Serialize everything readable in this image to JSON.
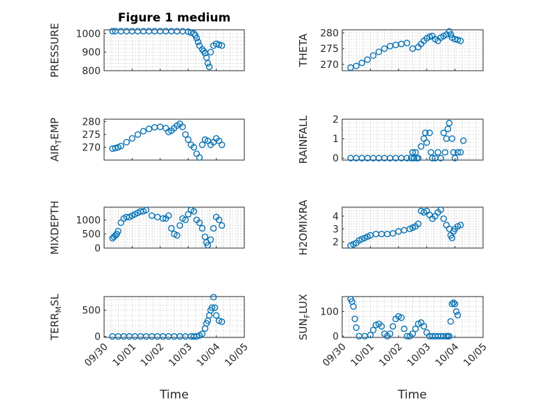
{
  "figure": {
    "title": "Figure 1 medium",
    "xlabel": "Time",
    "xticks": [
      "09/30",
      "10/01",
      "10/02",
      "10/03",
      "10/04",
      "10/05"
    ],
    "marker_color": "#0072BD"
  },
  "chart_data": [
    {
      "type": "scatter",
      "title": "Figure 1 medium",
      "ylabel": "PRESSURE",
      "ylim": [
        800,
        1020
      ],
      "yticks": [
        800,
        900,
        1000
      ],
      "grid": true,
      "x": [
        0.3,
        0.4,
        0.6,
        0.8,
        1.0,
        1.2,
        1.4,
        1.6,
        1.8,
        2.0,
        2.2,
        2.4,
        2.6,
        2.8,
        3.0,
        3.1,
        3.2,
        3.25,
        3.3,
        3.35,
        3.4,
        3.5,
        3.55,
        3.6,
        3.65,
        3.7,
        3.75,
        3.8,
        3.9,
        4.0,
        4.1,
        4.2
      ],
      "y": [
        1013,
        1013,
        1013,
        1013,
        1013,
        1013,
        1013,
        1013,
        1013,
        1013,
        1013,
        1013,
        1013,
        1012,
        1010,
        1005,
        1000,
        990,
        975,
        955,
        935,
        915,
        905,
        895,
        870,
        840,
        820,
        900,
        935,
        945,
        940,
        935
      ]
    },
    {
      "type": "scatter",
      "ylabel": "THETA",
      "ylim": [
        268,
        281
      ],
      "yticks": [
        270,
        275,
        280
      ],
      "grid": true,
      "x": [
        0.3,
        0.5,
        0.7,
        0.9,
        1.1,
        1.3,
        1.5,
        1.7,
        1.9,
        2.1,
        2.3,
        2.5,
        2.7,
        2.8,
        2.9,
        3.0,
        3.1,
        3.2,
        3.3,
        3.4,
        3.5,
        3.6,
        3.7,
        3.8,
        3.85,
        3.9,
        4.0,
        4.1,
        4.2
      ],
      "y": [
        269,
        269.5,
        270.5,
        271.5,
        272.8,
        274,
        275,
        275.8,
        276.2,
        276.5,
        276.8,
        275,
        275.5,
        276.5,
        277.5,
        278.3,
        278.8,
        279,
        278,
        277.5,
        278.5,
        279,
        279.5,
        280.5,
        279.5,
        278.5,
        278,
        277.8,
        277.5
      ]
    },
    {
      "type": "scatter",
      "ylabel": "AIR_TEMP",
      "ylim": [
        265,
        281
      ],
      "yticks": [
        270,
        275,
        280
      ],
      "grid": false,
      "x": [
        0.3,
        0.4,
        0.5,
        0.6,
        0.8,
        1.0,
        1.2,
        1.4,
        1.6,
        1.8,
        2.0,
        2.2,
        2.3,
        2.4,
        2.5,
        2.6,
        2.7,
        2.8,
        2.9,
        3.0,
        3.1,
        3.2,
        3.3,
        3.4,
        3.5,
        3.6,
        3.7,
        3.8,
        3.9,
        4.0,
        4.1,
        4.2
      ],
      "y": [
        269.5,
        269.7,
        270,
        270.5,
        272,
        273.5,
        275,
        276.3,
        277.2,
        277.8,
        278,
        277.5,
        276,
        276.5,
        277.5,
        278.5,
        279.2,
        278,
        275,
        273,
        271,
        270,
        267.5,
        266,
        271,
        273,
        272.5,
        271,
        272,
        273.5,
        272.5,
        271
      ]
    },
    {
      "type": "scatter",
      "ylabel": "RAINFALL",
      "ylim": [
        -0.1,
        2
      ],
      "yticks": [
        0,
        1,
        2
      ],
      "grid": true,
      "x": [
        0.3,
        0.5,
        0.7,
        0.9,
        1.1,
        1.3,
        1.5,
        1.7,
        1.9,
        2.1,
        2.3,
        2.45,
        2.5,
        2.55,
        2.6,
        2.65,
        2.7,
        2.8,
        2.9,
        2.95,
        3.0,
        3.1,
        3.15,
        3.2,
        3.3,
        3.4,
        3.5,
        3.6,
        3.65,
        3.7,
        3.75,
        3.8,
        3.9,
        3.95,
        4.0,
        4.1,
        4.2,
        4.3
      ],
      "y": [
        0,
        0,
        0,
        0,
        0,
        0,
        0,
        0,
        0,
        0,
        0,
        0,
        0.3,
        0,
        0.3,
        0,
        0,
        0.6,
        1.0,
        1.3,
        0.8,
        1.3,
        0.3,
        0,
        0,
        0.3,
        0,
        1.3,
        0.3,
        1.0,
        1.5,
        1.8,
        1.0,
        0.3,
        0,
        0.3,
        0.3,
        0.9
      ]
    },
    {
      "type": "scatter",
      "ylabel": "MIXDEPTH",
      "ylim": [
        0,
        1450
      ],
      "yticks": [
        0,
        500,
        1000
      ],
      "grid": true,
      "x": [
        0.3,
        0.35,
        0.4,
        0.45,
        0.5,
        0.6,
        0.7,
        0.8,
        0.9,
        1.0,
        1.1,
        1.2,
        1.3,
        1.4,
        1.5,
        1.7,
        1.9,
        2.1,
        2.2,
        2.3,
        2.4,
        2.5,
        2.6,
        2.7,
        2.8,
        2.9,
        3.0,
        3.1,
        3.2,
        3.3,
        3.4,
        3.5,
        3.6,
        3.65,
        3.7,
        3.8,
        3.9,
        4.0,
        4.1,
        4.2
      ],
      "y": [
        350,
        400,
        450,
        500,
        600,
        900,
        1050,
        1100,
        1100,
        1150,
        1200,
        1250,
        1300,
        1300,
        1350,
        1150,
        1100,
        1050,
        1050,
        1150,
        700,
        500,
        450,
        800,
        1050,
        1000,
        1200,
        1350,
        1300,
        1000,
        900,
        700,
        400,
        200,
        100,
        300,
        700,
        1100,
        1000,
        800
      ]
    },
    {
      "type": "scatter",
      "ylabel": "H2OMIXRA",
      "ylim": [
        1.5,
        4.7
      ],
      "yticks": [
        2,
        3,
        4
      ],
      "grid": true,
      "x": [
        0.3,
        0.4,
        0.5,
        0.6,
        0.7,
        0.8,
        0.9,
        1.0,
        1.2,
        1.4,
        1.6,
        1.8,
        2.0,
        2.2,
        2.4,
        2.5,
        2.6,
        2.7,
        2.8,
        2.9,
        3.0,
        3.1,
        3.2,
        3.3,
        3.4,
        3.5,
        3.6,
        3.7,
        3.8,
        3.85,
        3.9,
        3.95,
        4.0,
        4.1,
        4.2
      ],
      "y": [
        1.7,
        1.8,
        1.9,
        2.1,
        2.2,
        2.3,
        2.4,
        2.5,
        2.6,
        2.6,
        2.6,
        2.65,
        2.8,
        2.9,
        3.0,
        3.1,
        3.2,
        3.4,
        4.4,
        4.3,
        4.4,
        4.1,
        3.8,
        4.0,
        4.3,
        4.5,
        3.8,
        3.3,
        3.0,
        2.5,
        2.3,
        2.8,
        3.0,
        3.2,
        3.3
      ]
    },
    {
      "type": "scatter",
      "ylabel": "TERR_MSL",
      "ylim": [
        -20,
        760
      ],
      "yticks": [
        0,
        500
      ],
      "grid": true,
      "x": [
        0.3,
        0.5,
        0.7,
        0.9,
        1.1,
        1.3,
        1.5,
        1.7,
        1.9,
        2.1,
        2.3,
        2.5,
        2.7,
        2.9,
        3.1,
        3.2,
        3.3,
        3.4,
        3.5,
        3.6,
        3.65,
        3.7,
        3.75,
        3.8,
        3.85,
        3.9,
        3.95,
        4.0,
        4.1,
        4.2
      ],
      "y": [
        0,
        0,
        0,
        0,
        0,
        0,
        0,
        0,
        0,
        0,
        0,
        0,
        0,
        0,
        0,
        0,
        0,
        20,
        50,
        150,
        250,
        300,
        400,
        500,
        550,
        750,
        550,
        400,
        300,
        280
      ]
    },
    {
      "type": "scatter",
      "ylabel": "SUN_FLUX",
      "ylim": [
        -5,
        160
      ],
      "yticks": [
        0,
        100
      ],
      "grid": true,
      "x": [
        0.3,
        0.35,
        0.4,
        0.45,
        0.5,
        0.6,
        0.8,
        1.0,
        1.1,
        1.2,
        1.3,
        1.4,
        1.5,
        1.6,
        1.7,
        1.8,
        1.9,
        2.0,
        2.1,
        2.2,
        2.3,
        2.4,
        2.5,
        2.6,
        2.7,
        2.8,
        2.9,
        3.0,
        3.1,
        3.2,
        3.3,
        3.4,
        3.5,
        3.6,
        3.7,
        3.75,
        3.8,
        3.85,
        3.9,
        3.95,
        4.0,
        4.05,
        4.1
      ],
      "y": [
        150,
        140,
        120,
        70,
        35,
        0,
        0,
        5,
        25,
        45,
        50,
        40,
        10,
        0,
        10,
        40,
        70,
        80,
        75,
        30,
        0,
        0,
        10,
        30,
        50,
        55,
        40,
        15,
        0,
        0,
        0,
        0,
        0,
        0,
        0,
        0,
        0,
        60,
        130,
        135,
        130,
        100,
        85
      ]
    }
  ]
}
